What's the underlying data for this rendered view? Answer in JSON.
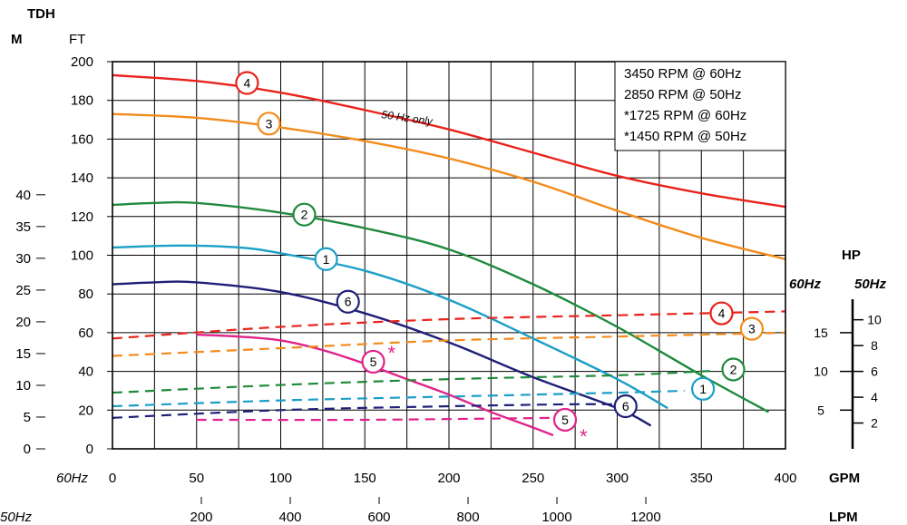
{
  "labels": {
    "tdh": "TDH",
    "m": "M",
    "ft": "FT",
    "hp": "HP",
    "hp_60": "60Hz",
    "hp_50": "50Hz",
    "gpm_row": "60Hz",
    "gpm": "GPM",
    "lpm_row": "50Hz",
    "lpm": "LPM",
    "note_50hz_only": "50 Hz only",
    "asterisk": "*"
  },
  "legend": [
    "3450 RPM @ 60Hz",
    "2850 RPM @ 50Hz",
    "*1725 RPM @ 60Hz",
    "*1450 RPM @ 50Hz"
  ],
  "chart_data": {
    "type": "line",
    "title": "",
    "x_axis": {
      "label": "GPM",
      "range": [
        0,
        400
      ],
      "ticks": [
        "0",
        "50",
        "100",
        "150",
        "200",
        "250",
        "300",
        "350",
        "400"
      ]
    },
    "x2_axis": {
      "label": "LPM",
      "ticks": [
        "200",
        "400",
        "600",
        "800",
        "1000",
        "1200"
      ]
    },
    "y_axis_ft": {
      "label": "FT",
      "range": [
        0,
        200
      ],
      "ticks": [
        "0",
        "20",
        "40",
        "60",
        "80",
        "100",
        "120",
        "140",
        "160",
        "180",
        "200"
      ]
    },
    "y_axis_m": {
      "label": "M",
      "ticks": [
        "0",
        "5",
        "10",
        "15",
        "20",
        "25",
        "30",
        "35",
        "40"
      ]
    },
    "hp_axis": {
      "label": "HP",
      "ticks_60hz": [
        "5",
        "10",
        "15"
      ],
      "ticks_50hz": [
        "2",
        "4",
        "6",
        "8",
        "10"
      ]
    },
    "colors": {
      "1": "#1a9fc6",
      "2": "#1f8a3c",
      "3": "#f28c1c",
      "4": "#e8231c",
      "5": "#e0238a",
      "6": "#1f1f78"
    },
    "head_curves": [
      {
        "id": "4",
        "color": "#e8231c",
        "points": [
          [
            0,
            193
          ],
          [
            50,
            190
          ],
          [
            100,
            184
          ],
          [
            150,
            175
          ],
          [
            200,
            165
          ],
          [
            250,
            153
          ],
          [
            300,
            141
          ],
          [
            350,
            132
          ],
          [
            400,
            125
          ]
        ]
      },
      {
        "id": "3",
        "color": "#f28c1c",
        "points": [
          [
            0,
            173
          ],
          [
            50,
            171
          ],
          [
            100,
            166
          ],
          [
            150,
            159
          ],
          [
            200,
            150
          ],
          [
            250,
            138
          ],
          [
            300,
            123
          ],
          [
            350,
            109
          ],
          [
            400,
            98
          ]
        ]
      },
      {
        "id": "2",
        "color": "#1f8a3c",
        "points": [
          [
            0,
            126
          ],
          [
            25,
            127
          ],
          [
            50,
            127
          ],
          [
            100,
            122
          ],
          [
            150,
            114
          ],
          [
            200,
            103
          ],
          [
            250,
            85
          ],
          [
            300,
            63
          ],
          [
            350,
            38
          ],
          [
            390,
            19
          ]
        ]
      },
      {
        "id": "1",
        "color": "#1a9fc6",
        "points": [
          [
            0,
            104
          ],
          [
            40,
            105
          ],
          [
            75,
            104
          ],
          [
            100,
            101
          ],
          [
            150,
            92
          ],
          [
            200,
            77
          ],
          [
            250,
            57
          ],
          [
            300,
            36
          ],
          [
            330,
            21
          ]
        ]
      },
      {
        "id": "6",
        "color": "#1f1f78",
        "points": [
          [
            0,
            85
          ],
          [
            25,
            86
          ],
          [
            50,
            86
          ],
          [
            100,
            81
          ],
          [
            150,
            70
          ],
          [
            200,
            55
          ],
          [
            250,
            37
          ],
          [
            300,
            21
          ],
          [
            320,
            12
          ]
        ]
      },
      {
        "id": "5",
        "color": "#e0238a",
        "points": [
          [
            50,
            59
          ],
          [
            75,
            58
          ],
          [
            100,
            56
          ],
          [
            125,
            51
          ],
          [
            150,
            44
          ],
          [
            175,
            36
          ],
          [
            200,
            28
          ],
          [
            225,
            19
          ],
          [
            250,
            11
          ],
          [
            262,
            7
          ]
        ]
      }
    ],
    "hp_curves": [
      {
        "id": "4",
        "color": "#e8231c",
        "points": [
          [
            0,
            57
          ],
          [
            100,
            63
          ],
          [
            200,
            67
          ],
          [
            300,
            69
          ],
          [
            400,
            71
          ]
        ]
      },
      {
        "id": "3",
        "color": "#f28c1c",
        "points": [
          [
            0,
            48
          ],
          [
            100,
            52
          ],
          [
            200,
            56
          ],
          [
            300,
            58
          ],
          [
            400,
            60
          ]
        ]
      },
      {
        "id": "2",
        "color": "#1f8a3c",
        "points": [
          [
            0,
            29
          ],
          [
            100,
            33
          ],
          [
            200,
            36
          ],
          [
            300,
            38
          ],
          [
            350,
            40
          ],
          [
            354,
            40
          ]
        ]
      },
      {
        "id": "1",
        "color": "#1a9fc6",
        "points": [
          [
            0,
            22
          ],
          [
            100,
            25
          ],
          [
            200,
            27
          ],
          [
            300,
            29
          ],
          [
            340,
            30
          ]
        ]
      },
      {
        "id": "6",
        "color": "#1f1f78",
        "points": [
          [
            0,
            16
          ],
          [
            100,
            20
          ],
          [
            200,
            22
          ],
          [
            270,
            23
          ],
          [
            300,
            23
          ]
        ]
      },
      {
        "id": "5",
        "color": "#e0238a",
        "points": [
          [
            50,
            15
          ],
          [
            150,
            15
          ],
          [
            262,
            16
          ]
        ]
      }
    ],
    "markers": [
      {
        "id": "4",
        "color": "#e8231c",
        "x": 80,
        "y": 189
      },
      {
        "id": "3",
        "color": "#f28c1c",
        "x": 93,
        "y": 168
      },
      {
        "id": "2",
        "color": "#1f8a3c",
        "x": 114,
        "y": 121
      },
      {
        "id": "1",
        "color": "#1a9fc6",
        "x": 127,
        "y": 98
      },
      {
        "id": "6",
        "color": "#1f1f78",
        "x": 140,
        "y": 76
      },
      {
        "id": "5",
        "color": "#e0238a",
        "x": 155,
        "y": 45,
        "asterisk": true
      },
      {
        "id": "4",
        "color": "#e8231c",
        "x": 362,
        "y": 70
      },
      {
        "id": "3",
        "color": "#f28c1c",
        "x": 380,
        "y": 62
      },
      {
        "id": "2",
        "color": "#1f8a3c",
        "x": 369,
        "y": 41
      },
      {
        "id": "1",
        "color": "#1a9fc6",
        "x": 351,
        "y": 31
      },
      {
        "id": "6",
        "color": "#1f1f78",
        "x": 305,
        "y": 22
      },
      {
        "id": "5",
        "color": "#e0238a",
        "x": 269,
        "y": 15,
        "asterisk": true
      }
    ]
  }
}
